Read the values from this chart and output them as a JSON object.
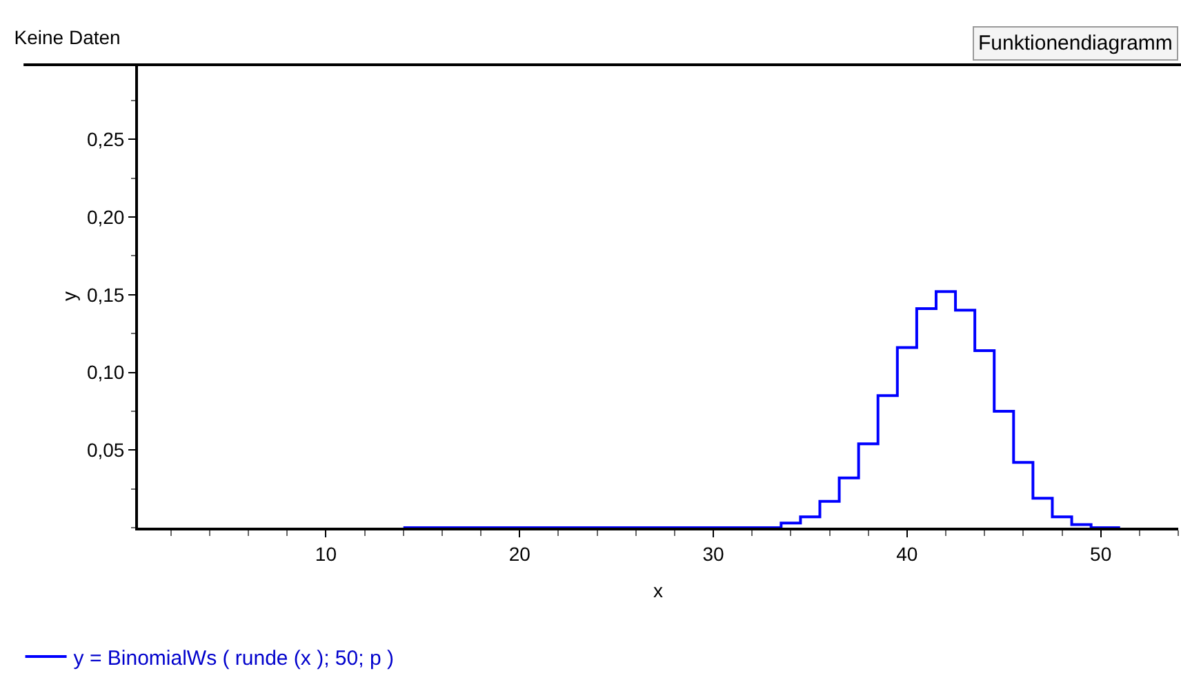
{
  "chart_data": {
    "type": "step",
    "title": "Keine Daten",
    "xlabel": "x",
    "ylabel": "y",
    "annotations": [
      "Funktionendiagramm"
    ],
    "x": [
      14,
      15,
      16,
      17,
      18,
      19,
      20,
      21,
      22,
      23,
      24,
      25,
      26,
      27,
      28,
      29,
      30,
      31,
      32,
      33,
      34,
      35,
      36,
      37,
      38,
      39,
      40,
      41,
      42,
      43,
      44,
      45,
      46,
      47,
      48,
      49,
      50,
      51
    ],
    "series": [
      {
        "name": "y = BinomialWs ( runde (x ); 50; p )",
        "color": "#0000ff",
        "values": [
          0,
          0,
          0,
          0,
          0,
          0,
          0,
          0,
          0,
          0,
          0,
          0,
          0,
          0,
          0,
          0,
          0,
          0,
          0,
          0,
          0.003,
          0.007,
          0.017,
          0.032,
          0.054,
          0.085,
          0.116,
          0.141,
          0.152,
          0.14,
          0.114,
          0.075,
          0.042,
          0.019,
          0.007,
          0.002,
          0,
          0
        ]
      }
    ],
    "xlim": [
      0.3,
      54
    ],
    "ylim": [
      0,
      0.298
    ],
    "xticks": [
      10,
      20,
      30,
      40,
      50
    ],
    "yticks": [
      {
        "value": 0.05,
        "label": "0,05"
      },
      {
        "value": 0.1,
        "label": "0,10"
      },
      {
        "value": 0.15,
        "label": "0,15"
      },
      {
        "value": 0.2,
        "label": "0,20"
      },
      {
        "value": 0.25,
        "label": "0,25"
      }
    ],
    "legend": "bottom left",
    "line_style": "solid",
    "marker": "none"
  }
}
